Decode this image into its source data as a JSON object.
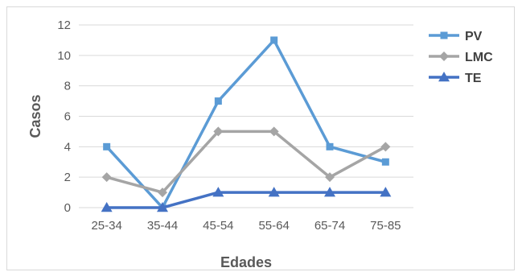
{
  "chart_data": {
    "type": "line",
    "categories": [
      "25-34",
      "35-44",
      "45-54",
      "55-64",
      "65-74",
      "75-85"
    ],
    "series": [
      {
        "name": "PV",
        "values": [
          4,
          0,
          7,
          11,
          4,
          3
        ],
        "color": "#5b9bd5",
        "marker": "square"
      },
      {
        "name": "LMC",
        "values": [
          2,
          1,
          5,
          5,
          2,
          4
        ],
        "color": "#a5a5a5",
        "marker": "diamond"
      },
      {
        "name": "TE",
        "values": [
          0,
          0,
          1,
          1,
          1,
          1
        ],
        "color": "#4472c4",
        "marker": "triangle"
      }
    ],
    "xlabel": "Edades",
    "ylabel": "Casos",
    "ylim": [
      0,
      12
    ],
    "yticks": [
      0,
      2,
      4,
      6,
      8,
      10,
      12
    ],
    "grid": true,
    "legend_position": "right"
  }
}
